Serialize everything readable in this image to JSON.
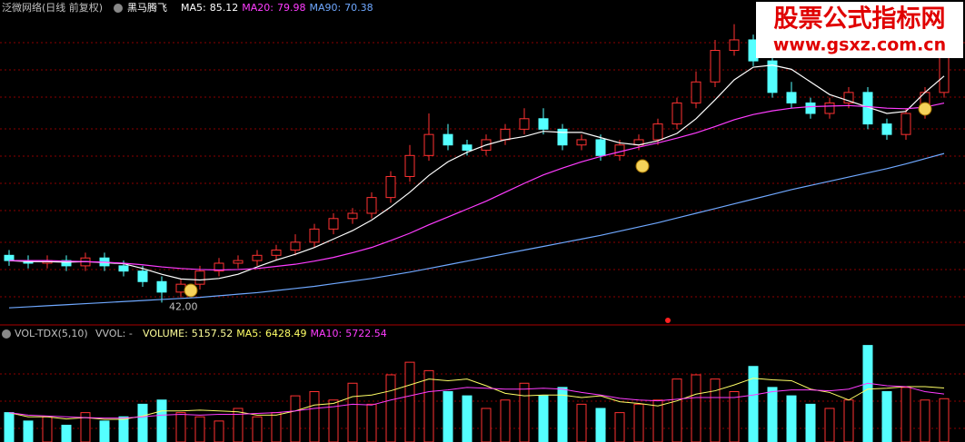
{
  "header": {
    "stock": "泛微网络(日线 前复权)",
    "indicator": "黑马腾飞"
  },
  "watermark": {
    "title": "股票公式指标网",
    "url": "www.gsxz.com.cn"
  },
  "chart_data": [
    {
      "type": "candlestick",
      "up_color": "#ff3232",
      "down_color": "#54ffff",
      "ylim": [
        40,
        97
      ],
      "open": [
        51,
        50,
        49.5,
        50,
        49,
        50.5,
        49,
        48,
        46,
        44,
        45.5,
        48,
        49.5,
        50,
        51,
        52,
        53.5,
        56,
        58,
        59,
        62,
        66,
        70,
        74,
        72,
        71,
        73,
        75,
        77,
        75,
        72,
        73,
        70,
        72,
        73,
        76,
        80,
        84,
        90,
        92,
        88,
        82,
        80,
        78,
        80,
        82,
        76,
        74,
        78,
        82
      ],
      "high": [
        52,
        51,
        51,
        51,
        51.5,
        51.5,
        50,
        49,
        47,
        46.5,
        49,
        50.5,
        51,
        52,
        53,
        55,
        57,
        59,
        60,
        63,
        67,
        72,
        78,
        76,
        73,
        74,
        76,
        79,
        79,
        76,
        74,
        74,
        73,
        74,
        77,
        81,
        86,
        92,
        95,
        93,
        89,
        84,
        81,
        81,
        83,
        83,
        77,
        79,
        83,
        92
      ],
      "low": [
        49,
        48.5,
        48.5,
        48,
        48,
        48,
        47,
        45,
        42,
        43,
        44.5,
        47,
        48.5,
        49,
        50,
        51,
        52.5,
        55,
        57,
        58,
        61,
        65,
        69,
        71,
        70,
        70,
        72,
        74,
        74,
        71,
        71,
        69,
        69,
        71,
        72,
        75,
        79,
        83,
        89,
        87,
        81,
        79,
        77,
        77,
        79,
        75,
        73,
        73,
        77,
        81
      ],
      "close": [
        50,
        49.5,
        50,
        49,
        50.5,
        49,
        48,
        46,
        44,
        45.5,
        48,
        49.5,
        50,
        51,
        52,
        53.5,
        56,
        58,
        59,
        62,
        66,
        70,
        74,
        72,
        71,
        73,
        75,
        77,
        75,
        72,
        73,
        70,
        72,
        73,
        76,
        80,
        84,
        90,
        92,
        88,
        82,
        80,
        78,
        80,
        82,
        76,
        74,
        78,
        82,
        90
      ],
      "annotations": [
        {
          "value": 42,
          "label": "42.00"
        }
      ],
      "series": [
        {
          "name": "MA5:",
          "color": "#ffffff",
          "values": [
            50,
            49.8,
            49.8,
            49.7,
            49.8,
            49.6,
            49.4,
            48.5,
            47.4,
            46.5,
            46.3,
            46.6,
            47.4,
            48.8,
            50.1,
            51.2,
            52.5,
            54.1,
            55.7,
            57.7,
            60.2,
            63,
            66.2,
            68.8,
            70.6,
            72,
            73,
            73.6,
            74.6,
            74.4,
            74.4,
            73.4,
            72.4,
            72,
            72.8,
            74.2,
            77,
            80.6,
            84.4,
            86.8,
            87.2,
            86.4,
            84,
            81.6,
            80.4,
            79.2,
            78,
            78.4,
            82,
            85.12
          ]
        },
        {
          "name": "MA20:",
          "color": "#ff3cff",
          "values": [
            50,
            50,
            50,
            49.9,
            49.8,
            49.7,
            49.5,
            49.2,
            48.8,
            48.5,
            48.3,
            48.2,
            48.3,
            48.5,
            48.9,
            49.3,
            49.9,
            50.6,
            51.5,
            52.5,
            53.8,
            55.2,
            56.8,
            58.3,
            59.8,
            61.3,
            63,
            64.7,
            66.3,
            67.6,
            68.8,
            69.8,
            70.7,
            71.6,
            72.4,
            73.3,
            74.3,
            75.5,
            76.8,
            77.8,
            78.5,
            79,
            79.3,
            79.4,
            79.5,
            79.3,
            79,
            78.9,
            79.2,
            79.98
          ]
        },
        {
          "name": "MA90:",
          "color": "#6fa8ff",
          "values": [
            41,
            41.2,
            41.4,
            41.6,
            41.8,
            42,
            42.2,
            42.4,
            42.6,
            42.8,
            43,
            43.3,
            43.6,
            43.9,
            44.3,
            44.7,
            45.1,
            45.6,
            46.1,
            46.6,
            47.2,
            47.8,
            48.5,
            49.2,
            49.9,
            50.6,
            51.3,
            52,
            52.7,
            53.4,
            54.1,
            54.8,
            55.6,
            56.4,
            57.2,
            58.1,
            59,
            59.9,
            60.8,
            61.7,
            62.6,
            63.5,
            64.3,
            65.1,
            65.9,
            66.7,
            67.5,
            68.4,
            69.4,
            70.38
          ]
        }
      ]
    },
    {
      "type": "bar",
      "title": "VOL-TDX(5,10)",
      "subtitle": "VVOL: -",
      "name": "VOLUME:",
      "ylim": [
        0,
        12000
      ],
      "values": [
        3500,
        2500,
        3000,
        2000,
        3500,
        2500,
        3000,
        4500,
        5000,
        3500,
        3000,
        2500,
        4000,
        3000,
        3500,
        5500,
        6000,
        5000,
        7000,
        4500,
        8000,
        9500,
        8500,
        6000,
        5500,
        4000,
        5000,
        7000,
        5500,
        6500,
        4500,
        4000,
        3500,
        4500,
        5000,
        7500,
        8000,
        7500,
        6000,
        9000,
        6500,
        5500,
        4500,
        4000,
        5000,
        11500,
        6000,
        6500,
        5000,
        5157.52
      ],
      "series": [
        {
          "name": "MA5:",
          "color": "#ffff66",
          "values": [
            3500,
            3000,
            3000,
            2750,
            2900,
            2700,
            2700,
            3100,
            3700,
            3700,
            3800,
            3700,
            3600,
            3200,
            3200,
            3700,
            4400,
            4600,
            5400,
            5600,
            6100,
            6800,
            7500,
            7300,
            7500,
            6700,
            5800,
            5500,
            5600,
            5600,
            5300,
            5500,
            4800,
            4600,
            4300,
            4900,
            5700,
            6100,
            6800,
            7600,
            7400,
            7300,
            6300,
            5900,
            5000,
            6300,
            6400,
            6600,
            6600,
            6428.49
          ]
        },
        {
          "name": "MA10:",
          "color": "#ff3cff",
          "values": [
            3500,
            3200,
            3100,
            3000,
            2900,
            2850,
            2850,
            3000,
            3200,
            3300,
            3200,
            3300,
            3300,
            3400,
            3500,
            3700,
            4000,
            4200,
            4500,
            4400,
            5000,
            5500,
            6000,
            6200,
            6500,
            6400,
            6300,
            6300,
            6400,
            6300,
            5900,
            5600,
            5200,
            5000,
            4900,
            5100,
            5300,
            5300,
            5300,
            5600,
            6000,
            6200,
            6200,
            6100,
            6300,
            7000,
            6700,
            6600,
            6000,
            5722.54
          ]
        }
      ]
    }
  ]
}
